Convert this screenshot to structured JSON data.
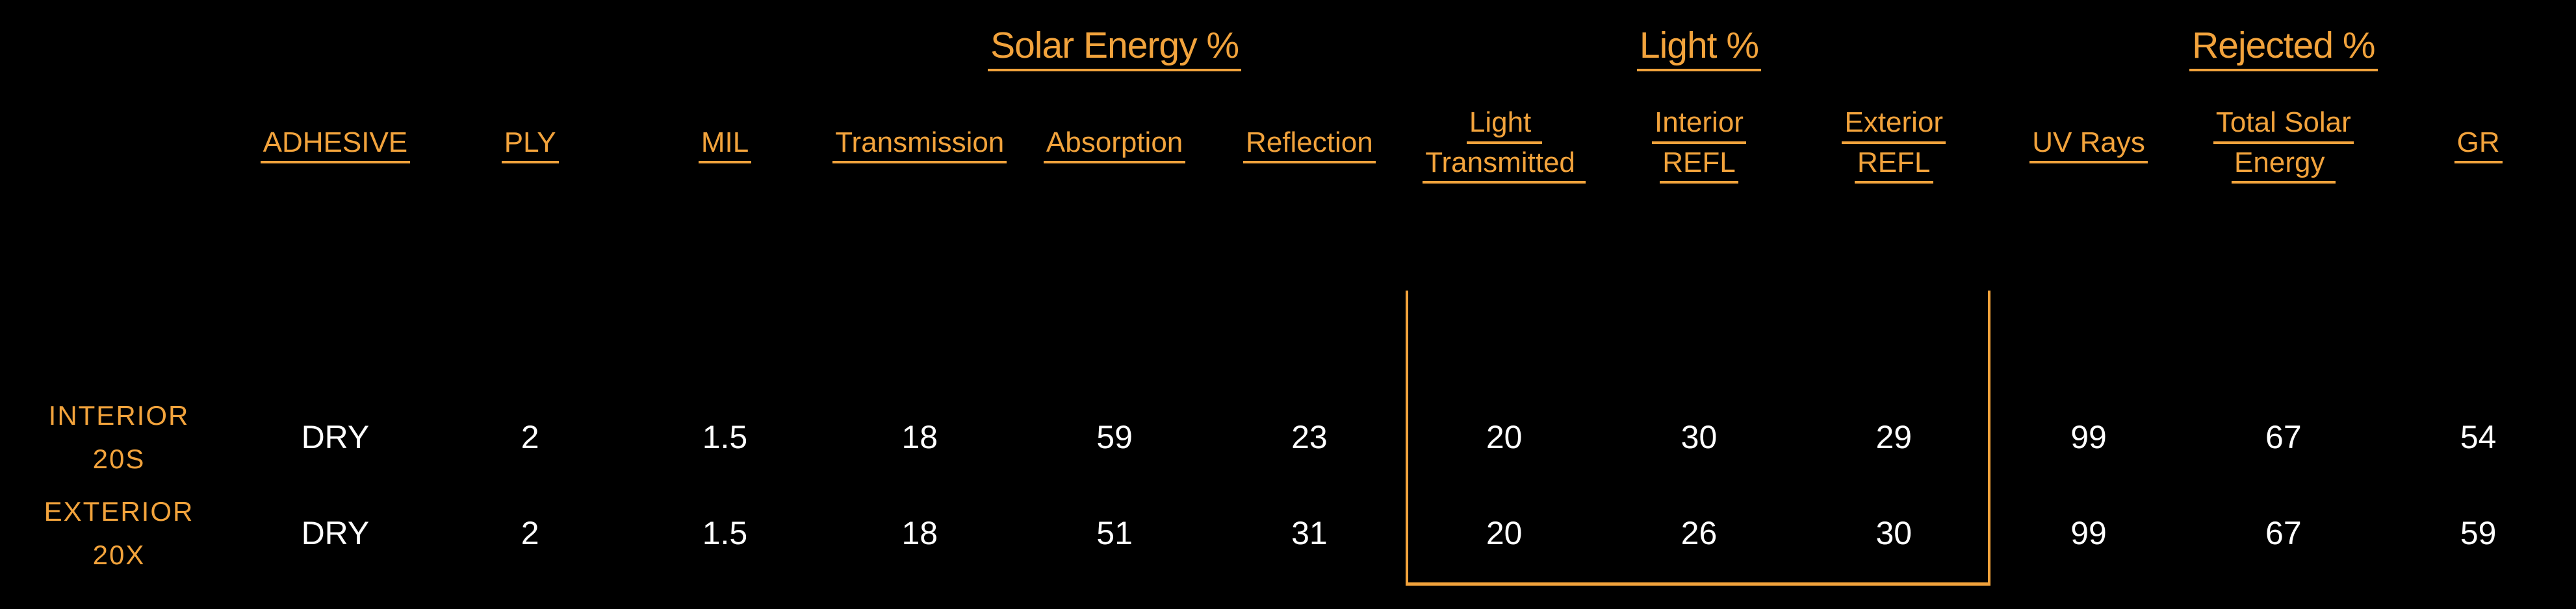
{
  "colors": {
    "background": "#000000",
    "accent": "#F2A33C",
    "value_text": "#FFFFFF"
  },
  "table": {
    "group_headers": {
      "solar": "Solar Energy %",
      "light": "Light %",
      "rejected": "Rejected %"
    },
    "columns": {
      "adhesive": "ADHESIVE",
      "ply": "PLY",
      "mil": "MIL",
      "transmission": "Transmission",
      "absorption": "Absorption",
      "reflection": "Reflection",
      "light_transmitted": {
        "line1": "Light ",
        "line2": "Transmitted "
      },
      "interior_refl": {
        "line1": "Interior",
        "line2": "REFL"
      },
      "exterior_refl": {
        "line1": "Exterior",
        "line2": "REFL"
      },
      "uv_rays": "UV Rays",
      "total_solar_energy": {
        "line1": "Total Solar",
        "line2": "Energy "
      },
      "gr": "GR"
    },
    "rows": [
      {
        "label_line1": "INTERIOR",
        "label_line2": "20S",
        "adhesive": "DRY",
        "ply": "2",
        "mil": "1.5",
        "transmission": "18",
        "absorption": "59",
        "reflection": "23",
        "light_transmitted": "20",
        "interior_refl": "30",
        "exterior_refl": "29",
        "uv_rays": "99",
        "total_solar_energy": "67",
        "gr": "54"
      },
      {
        "label_line1": "EXTERIOR",
        "label_line2": "20X",
        "adhesive": "DRY",
        "ply": "2",
        "mil": "1.5",
        "transmission": "18",
        "absorption": "51",
        "reflection": "31",
        "light_transmitted": "20",
        "interior_refl": "26",
        "exterior_refl": "30",
        "uv_rays": "99",
        "total_solar_energy": "67",
        "gr": "59"
      }
    ]
  }
}
